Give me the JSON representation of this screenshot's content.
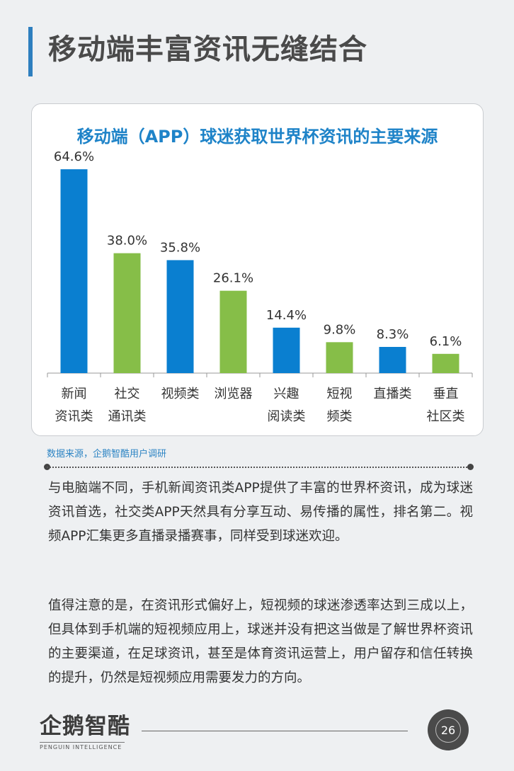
{
  "page": {
    "title": "移动端丰富资讯无缝结合",
    "source": "数据来源，企鹅智酷用户调研",
    "paragraphs": [
      "与电脑端不同，手机新闻资讯类APP提供了丰富的世界杯资讯，成为球迷资讯首选，社交类APP天然具有分享互动、易传播的属性，排名第二。视频APP汇集更多直播录播赛事，同样受到球迷欢迎。",
      "值得注意的是，在资讯形式偏好上，短视频的球迷渗透率达到三成以上，但具体到手机端的短视频应用上，球迷并没有把这当做是了解世界杯资讯的主要渠道，在足球资讯，甚至是体育资讯运营上，用户留存和信任转换的提升，仍然是短视频应用需要发力的方向。"
    ],
    "logo_text": "企鹅智酷",
    "logo_subtext": "PENGUIN INTELLIGENCE",
    "page_number": "26"
  },
  "colors": {
    "blue": "#0a7fd0",
    "green": "#86be48",
    "title_blue": "#1e83c8"
  },
  "chart_data": {
    "type": "bar",
    "title": "移动端（APP）球迷获取世界杯资讯的主要来源",
    "categories": [
      [
        "新闻",
        "资讯类"
      ],
      [
        "社交",
        "通讯类"
      ],
      [
        "视频类"
      ],
      [
        "浏览器"
      ],
      [
        "兴趣",
        "阅读类"
      ],
      [
        "短视",
        "频类"
      ],
      [
        "直播类"
      ],
      [
        "垂直",
        "社区类"
      ]
    ],
    "values": [
      64.6,
      38.0,
      35.8,
      26.1,
      14.4,
      9.8,
      8.3,
      6.1
    ],
    "value_labels": [
      "64.6%",
      "38.0%",
      "35.8%",
      "26.1%",
      "14.4%",
      "9.8%",
      "8.3%",
      "6.1%"
    ],
    "bar_colors": [
      "blue",
      "green",
      "blue",
      "green",
      "blue",
      "green",
      "blue",
      "green"
    ],
    "ylim": [
      0,
      70
    ],
    "grid": false,
    "legend": "none"
  }
}
